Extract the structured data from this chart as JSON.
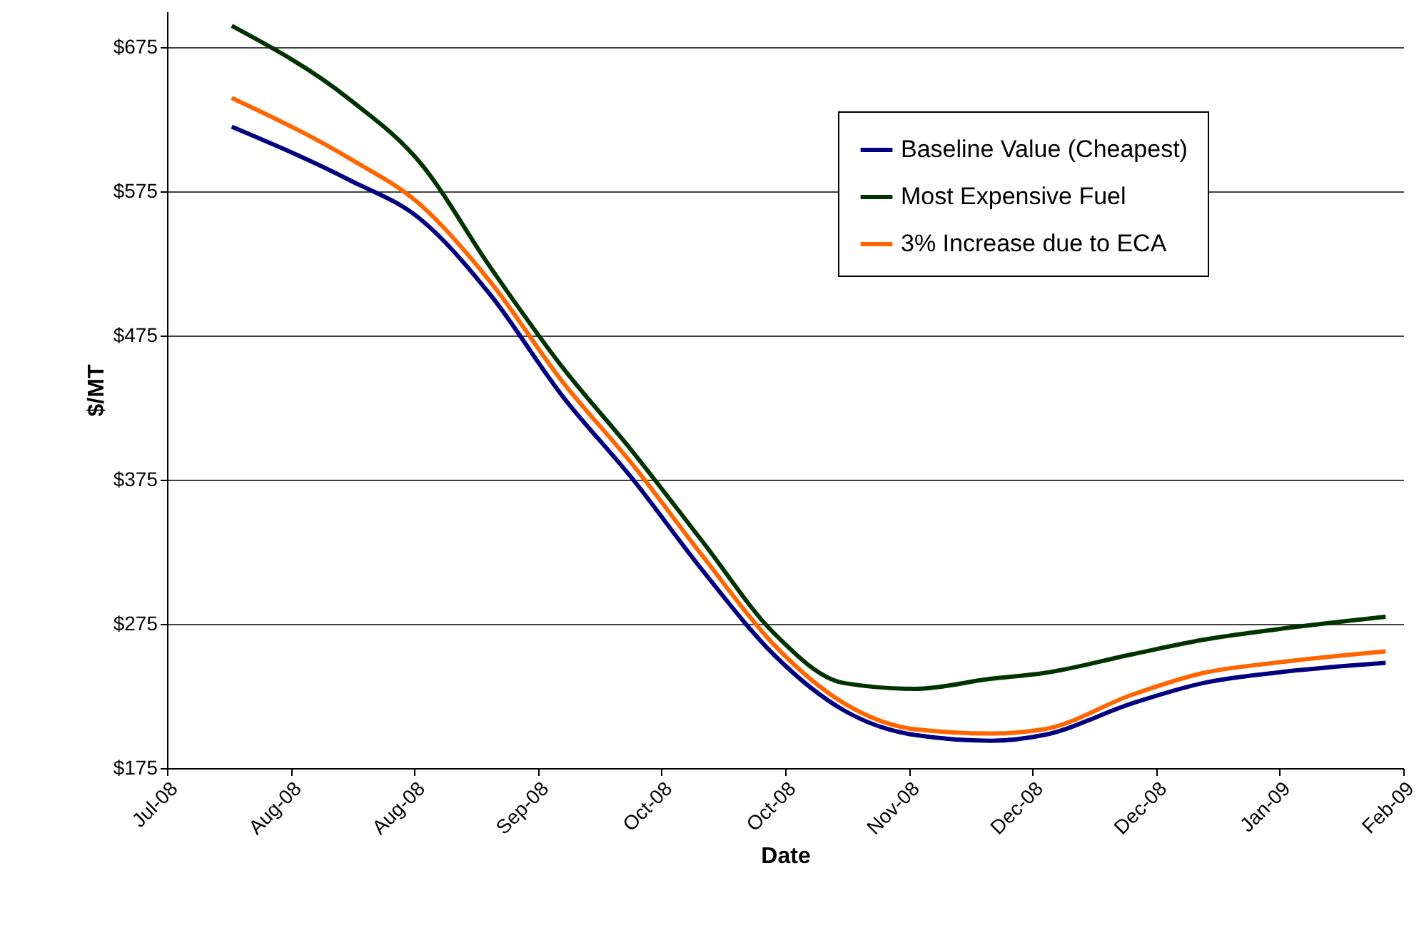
{
  "chart_data": {
    "type": "line",
    "xlabel": "Date",
    "ylabel": "$/MT",
    "x": [
      "2008-07-25",
      "2008-08-14",
      "2008-08-26",
      "2008-09-07",
      "2008-09-19",
      "2008-10-01",
      "2008-10-13",
      "2008-10-25",
      "2008-11-06",
      "2008-11-18",
      "2008-12-01",
      "2008-12-10",
      "2008-12-25",
      "2009-01-06",
      "2009-01-18",
      "2009-02-06"
    ],
    "series": [
      {
        "name": "Baseline Value (Cheapest)",
        "color": "#000080",
        "values": [
          620,
          583,
          556,
          503,
          434,
          376,
          312,
          254,
          215,
          198,
          194,
          198,
          220,
          234,
          241,
          248
        ]
      },
      {
        "name": "Most Expensive Fuel",
        "color": "#003300",
        "values": [
          690,
          639,
          595,
          522,
          454,
          395,
          332,
          269,
          234,
          230,
          237,
          241,
          254,
          264,
          271,
          280
        ]
      },
      {
        "name": "3% Increase due to ECA",
        "color": "#ff6600",
        "values": [
          640,
          598,
          566,
          512,
          444,
          386,
          322,
          261,
          220,
          202,
          199,
          202,
          226,
          241,
          248,
          256
        ]
      }
    ],
    "xlim": [
      "2008-07-14",
      "2009-02-09"
    ],
    "xticks": [
      {
        "value": "2008-07-14",
        "label": "Jul-08"
      },
      {
        "value": "2008-08-04",
        "label": "Aug-08"
      },
      {
        "value": "2008-08-25",
        "label": "Aug-08"
      },
      {
        "value": "2008-09-15",
        "label": "Sep-08"
      },
      {
        "value": "2008-10-06",
        "label": "Oct-08"
      },
      {
        "value": "2008-10-27",
        "label": "Oct-08"
      },
      {
        "value": "2008-11-17",
        "label": "Nov-08"
      },
      {
        "value": "2008-12-08",
        "label": "Dec-08"
      },
      {
        "value": "2008-12-29",
        "label": "Dec-08"
      },
      {
        "value": "2009-01-19",
        "label": "Jan-09"
      },
      {
        "value": "2009-02-09",
        "label": "Feb-09"
      }
    ],
    "ylim": [
      175,
      700
    ],
    "yticks": [
      {
        "value": 175,
        "label": "$175"
      },
      {
        "value": 275,
        "label": "$275"
      },
      {
        "value": 375,
        "label": "$375"
      },
      {
        "value": 475,
        "label": "$475"
      },
      {
        "value": 575,
        "label": "$575"
      },
      {
        "value": 675,
        "label": "$675"
      }
    ],
    "grid": "y",
    "legend": "top right",
    "marker": "none",
    "line_style": "solid"
  }
}
